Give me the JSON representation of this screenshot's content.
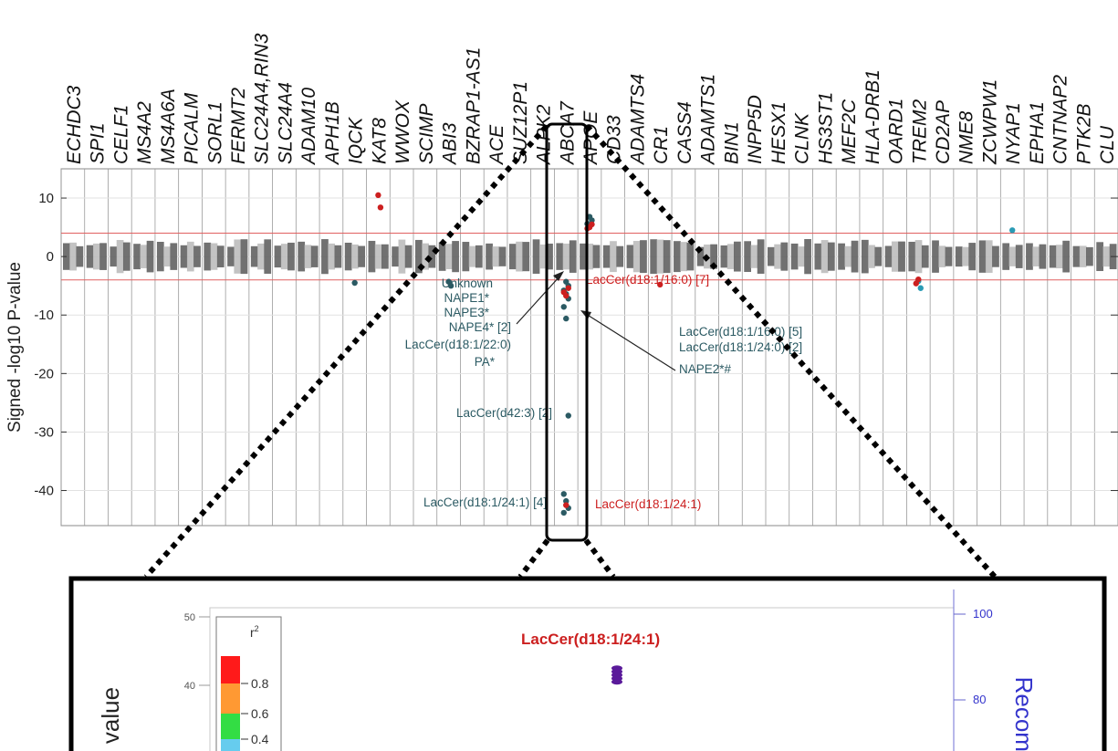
{
  "chart_data": [
    {
      "type": "scatter",
      "title": "",
      "ylabel": "Signed -log10 P-value",
      "ylim": [
        -46,
        15
      ],
      "yticks": [
        10,
        0,
        -10,
        -20,
        -30,
        -40
      ],
      "threshold_lines": [
        4,
        -4
      ],
      "threshold_color": "#e06060",
      "genes": [
        "ECHDC3",
        "SPI1",
        "CELF1",
        "MS4A2",
        "MS4A6A",
        "PICALM",
        "SORL1",
        "FERMT2",
        "SLC24A4,RIN3",
        "SLC24A4",
        "ADAM10",
        "APH1B",
        "IQCK",
        "KAT8",
        "WWOX",
        "SCIMP",
        "ABI3",
        "BZRAP1-AS1",
        "ACE",
        "SUZ12P1",
        "ALPK2",
        "ABCA7",
        "APOE",
        "CD33",
        "ADAMTS4",
        "CR1",
        "CASS4",
        "ADAMTS1",
        "BIN1",
        "INPP5D",
        "HESX1",
        "CLNK",
        "HS3ST1",
        "MEF2C",
        "HLA-DRB1",
        "OARD1",
        "TREM2",
        "CD2AP",
        "NME8",
        "ZCWPW1",
        "NYAP1",
        "EPHA1",
        "CNTNAP2",
        "PTK2B",
        "CLU"
      ],
      "significant_points": [
        {
          "gene": "KAT8",
          "y": 10.5,
          "color": "#cc1f1f"
        },
        {
          "gene": "KAT8",
          "y": 8.4,
          "color": "#cc1f1f"
        },
        {
          "gene": "IQCK",
          "y": -4.5,
          "color": "#2b5a63"
        },
        {
          "gene": "ABI3",
          "y": -4.3,
          "color": "#2b5a63"
        },
        {
          "gene": "ABI3",
          "y": -5.0,
          "color": "#2b5a63"
        },
        {
          "gene": "ABCA7",
          "y": -4.3,
          "color": "#2b5a63"
        },
        {
          "gene": "ABCA7",
          "y": -5.0,
          "color": "#2b5a63"
        },
        {
          "gene": "ABCA7",
          "y": -5.8,
          "color": "#2b5a63"
        },
        {
          "gene": "ABCA7",
          "y": -6.4,
          "color": "#2b5a63"
        },
        {
          "gene": "ABCA7",
          "y": -7.2,
          "color": "#2b5a63"
        },
        {
          "gene": "ABCA7",
          "y": -8.6,
          "color": "#2b5a63"
        },
        {
          "gene": "ABCA7",
          "y": -10.6,
          "color": "#2b5a63"
        },
        {
          "gene": "ABCA7",
          "y": -27.2,
          "color": "#2b5a63"
        },
        {
          "gene": "ABCA7",
          "y": -40.6,
          "color": "#2b5a63"
        },
        {
          "gene": "ABCA7",
          "y": -41.8,
          "color": "#2b5a63"
        },
        {
          "gene": "ABCA7",
          "y": -43.0,
          "color": "#2b5a63"
        },
        {
          "gene": "ABCA7",
          "y": -43.8,
          "color": "#2b5a63"
        },
        {
          "gene": "ABCA7",
          "y": -42.5,
          "color": "#cc1f1f"
        },
        {
          "gene": "ABCA7",
          "y": -5.4,
          "color": "#cc1f1f"
        },
        {
          "gene": "ABCA7",
          "y": -6.1,
          "color": "#cc1f1f"
        },
        {
          "gene": "ABCA7",
          "y": -6.7,
          "color": "#cc1f1f"
        },
        {
          "gene": "APOE",
          "y": 6.8,
          "color": "#2b5a63"
        },
        {
          "gene": "APOE",
          "y": 6.2,
          "color": "#2b5a63"
        },
        {
          "gene": "APOE",
          "y": 5.6,
          "color": "#2b5a63"
        },
        {
          "gene": "APOE",
          "y": 5.0,
          "color": "#cc1f1f"
        },
        {
          "gene": "APOE",
          "y": 5.5,
          "color": "#cc1f1f"
        },
        {
          "gene": "APOE",
          "y": 4.8,
          "color": "#cc1f1f"
        },
        {
          "gene": "CR1",
          "y": -4.8,
          "color": "#cc1f1f"
        },
        {
          "gene": "TREM2",
          "y": -4.2,
          "color": "#2a9bb5"
        },
        {
          "gene": "TREM2",
          "y": -5.4,
          "color": "#2a9bb5"
        },
        {
          "gene": "TREM2",
          "y": -4.6,
          "color": "#cc1f1f"
        },
        {
          "gene": "TREM2",
          "y": -3.9,
          "color": "#cc1f1f"
        },
        {
          "gene": "NYAP1",
          "y": 4.5,
          "color": "#2a9bb5"
        }
      ],
      "annotations": {
        "left_block": [
          "Unknown",
          "NAPE1*",
          "NAPE3*",
          "NAPE4* [2]",
          "LacCer(d18:1/22:0)",
          "PA*"
        ],
        "right_top": "LacCer(d18:1/16:0) [7]",
        "right_block": [
          "LacCer(d18:1/16:0) [5]",
          "LacCer(d18:1/24:0) [2]",
          "NAPE2*#"
        ],
        "mid": "LacCer(d42:3) [2]",
        "bottom_left": "LacCer(d18:1/24:1) [4]",
        "bottom_right": "LacCer(d18:1/24:1)"
      }
    },
    {
      "type": "scatter",
      "title": "LacCer(d18:1/24:1)",
      "title_color": "#cc1f1f",
      "ylabel": "value",
      "y2label": "Recomb",
      "ylim": [
        35,
        50
      ],
      "yticks": [
        50,
        40
      ],
      "y2ticks": [
        100,
        80
      ],
      "legend": {
        "title": "r",
        "title_sup": "2",
        "placement": "top-left",
        "levels": [
          "0.8",
          "0.6",
          "0.4"
        ],
        "colors": [
          "#ff1a1a",
          "#ff9933",
          "#33dd44",
          "#66ccee"
        ]
      },
      "points": [
        {
          "y": 42.5
        },
        {
          "y": 42.0
        },
        {
          "y": 41.5
        },
        {
          "y": 41.0
        },
        {
          "y": 40.5
        }
      ],
      "point_color": "#5a1a9a"
    }
  ]
}
